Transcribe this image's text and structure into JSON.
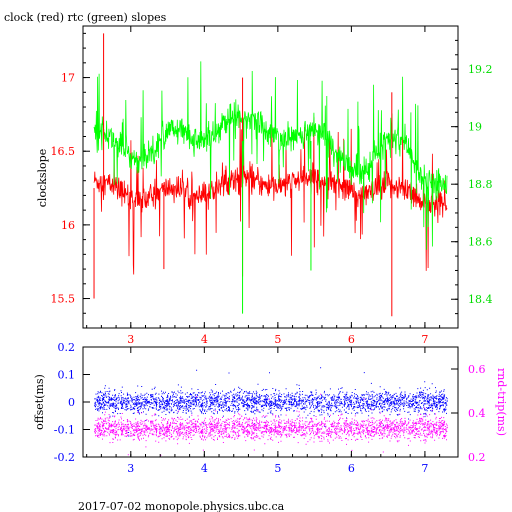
{
  "title": "clock (red) rtc (green) slopes",
  "footer": "2017-07-02  monopole.physics.ubc.ca",
  "colors": {
    "red": "#ff0000",
    "green": "#00ff00",
    "blue": "#0000ff",
    "magenta": "#ff00ff",
    "axis": "#000000"
  },
  "chart_data": [
    {
      "type": "line",
      "title": "clock (red) rtc (green) slopes",
      "ylabel": "clockslope",
      "x_ticks": [
        "3",
        "4",
        "5",
        "6",
        "7"
      ],
      "xlim": [
        2.35,
        7.45
      ],
      "left_axis": {
        "ticks": [
          "15.5",
          "16",
          "16.5",
          "17"
        ],
        "ylim": [
          15.3,
          17.35
        ]
      },
      "right_axis": {
        "ticks": [
          "18.4",
          "18.6",
          "18.8",
          "19",
          "19.2"
        ],
        "ylim": [
          18.3,
          19.35
        ]
      },
      "series": [
        {
          "name": "clock",
          "color": "red",
          "axis": "left",
          "x": [
            2.5,
            2.7,
            2.9,
            3.1,
            3.3,
            3.5,
            3.7,
            3.9,
            4.1,
            4.3,
            4.5,
            4.7,
            4.9,
            5.1,
            5.3,
            5.5,
            5.7,
            5.9,
            6.1,
            6.3,
            6.5,
            6.7,
            6.9,
            7.1,
            7.3
          ],
          "y": [
            16.3,
            16.28,
            16.22,
            16.15,
            16.2,
            16.25,
            16.24,
            16.18,
            16.22,
            16.3,
            16.33,
            16.3,
            16.25,
            16.27,
            16.3,
            16.32,
            16.3,
            16.25,
            16.2,
            16.22,
            16.28,
            16.25,
            16.18,
            16.14,
            16.15
          ]
        },
        {
          "name": "rtc",
          "color": "green",
          "axis": "right",
          "x": [
            2.5,
            2.7,
            2.9,
            3.1,
            3.3,
            3.5,
            3.7,
            3.9,
            4.1,
            4.3,
            4.5,
            4.7,
            4.9,
            5.1,
            5.3,
            5.5,
            5.7,
            5.9,
            6.1,
            6.3,
            6.5,
            6.7,
            6.9,
            7.1,
            7.3
          ],
          "y": [
            19.0,
            18.97,
            18.92,
            18.88,
            18.92,
            18.99,
            18.98,
            18.95,
            18.97,
            19.02,
            19.04,
            19.03,
            18.97,
            18.95,
            18.97,
            19.0,
            18.95,
            18.87,
            18.84,
            18.88,
            18.96,
            18.95,
            18.85,
            18.8,
            18.8
          ]
        }
      ]
    },
    {
      "type": "scatter",
      "ylabel": "offset(ms)",
      "ylabel_right": "rnd-trip(ms)",
      "x_ticks": [
        "3",
        "4",
        "5",
        "6",
        "7"
      ],
      "xlim": [
        2.35,
        7.45
      ],
      "left_axis": {
        "ticks": [
          "0.2",
          "0.1",
          "0",
          "-0.1",
          "-0.2"
        ],
        "ylim": [
          -0.2,
          0.2
        ]
      },
      "right_axis": {
        "ticks": [
          "0.6",
          "0.4",
          "0.2"
        ],
        "ylim": [
          0.2,
          0.7
        ]
      },
      "series": [
        {
          "name": "offset",
          "color": "blue",
          "axis": "left",
          "x_range": [
            2.5,
            7.3
          ],
          "center": 0.0,
          "spread": 0.02
        },
        {
          "name": "rnd-trip",
          "color": "magenta",
          "axis": "right",
          "x_range": [
            2.5,
            7.3
          ],
          "center": 0.33,
          "spread": 0.025
        }
      ]
    }
  ]
}
